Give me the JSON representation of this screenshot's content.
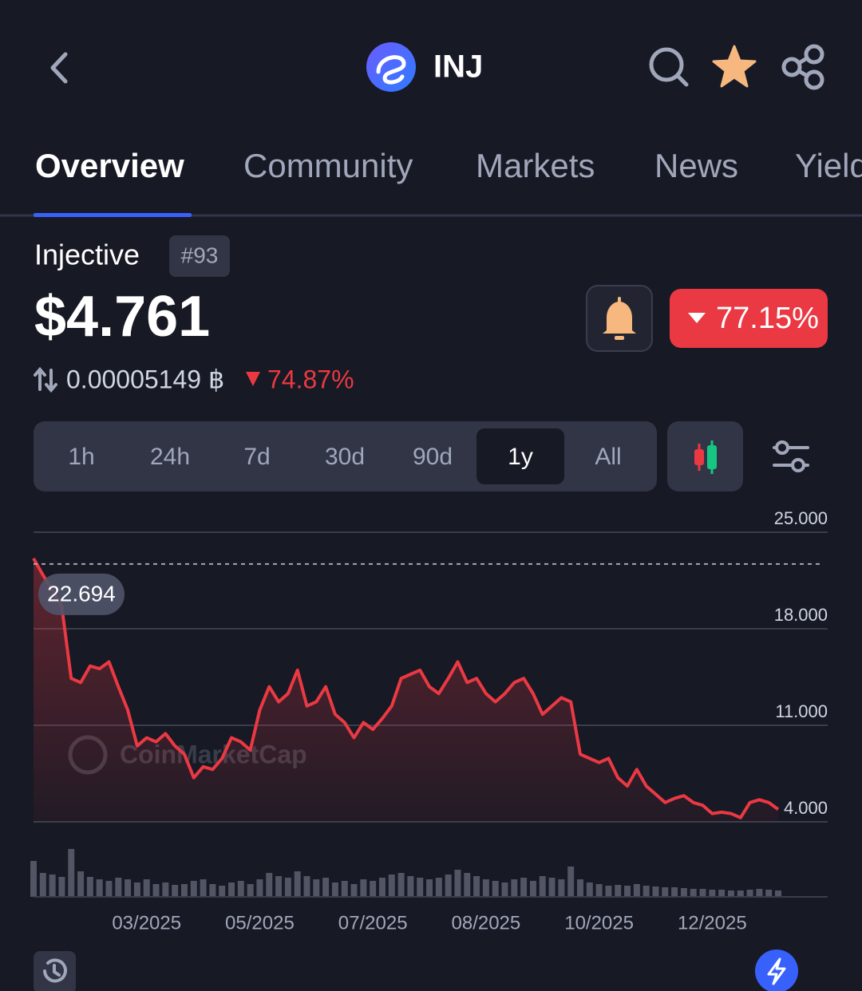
{
  "header": {
    "title": "INJ"
  },
  "tabs": {
    "items": [
      "Overview",
      "Community",
      "Markets",
      "News",
      "Yield"
    ],
    "active": 0
  },
  "coin": {
    "name": "Injective",
    "rank": "#93",
    "price": "$4.761",
    "change": "77.15%",
    "btc_price": "0.00005149 ฿",
    "btc_change": "74.87%"
  },
  "timeframes": {
    "items": [
      "1h",
      "24h",
      "7d",
      "30d",
      "90d",
      "1y",
      "All"
    ],
    "active": 5
  },
  "chart_data": {
    "type": "line",
    "watermark": "CoinMarketCap",
    "categories": [
      null,
      null,
      null,
      null,
      null,
      null,
      null,
      null,
      null,
      null,
      null,
      null,
      "03/2025",
      null,
      null,
      null,
      null,
      null,
      null,
      null,
      null,
      null,
      null,
      null,
      "05/2025",
      null,
      null,
      null,
      null,
      null,
      null,
      null,
      null,
      null,
      null,
      null,
      "07/2025",
      null,
      null,
      null,
      null,
      null,
      null,
      null,
      null,
      null,
      null,
      null,
      "08/2025",
      null,
      null,
      null,
      null,
      null,
      null,
      null,
      null,
      null,
      null,
      null,
      "10/2025",
      null,
      null,
      null,
      null,
      null,
      null,
      null,
      null,
      null,
      null,
      null,
      "12/2025",
      null,
      null,
      null,
      null,
      null,
      null,
      null
    ],
    "values": [
      23.1,
      21.9,
      20.8,
      19.6,
      14.4,
      14.1,
      15.3,
      15.1,
      15.6,
      13.8,
      12.1,
      9.5,
      10.1,
      9.8,
      10.4,
      9.5,
      8.9,
      7.2,
      8.0,
      7.8,
      8.6,
      10.1,
      9.8,
      9.2,
      12.1,
      13.8,
      12.7,
      13.3,
      15.0,
      12.4,
      12.7,
      13.8,
      11.8,
      11.2,
      10.1,
      11.2,
      10.7,
      11.5,
      12.4,
      14.4,
      14.7,
      15.0,
      13.8,
      13.3,
      14.4,
      15.6,
      14.1,
      14.4,
      13.3,
      12.7,
      13.3,
      14.1,
      14.4,
      13.3,
      11.8,
      12.4,
      13.0,
      12.7,
      8.9,
      8.6,
      8.3,
      8.6,
      7.2,
      6.6,
      7.8,
      6.6,
      6.0,
      5.4,
      5.7,
      5.9,
      5.4,
      5.2,
      4.6,
      4.7,
      4.6,
      4.3,
      5.4,
      5.6,
      5.4,
      4.9
    ],
    "color": "#ea3943",
    "volume": [
      45,
      30,
      28,
      25,
      60,
      32,
      25,
      22,
      20,
      24,
      22,
      18,
      22,
      16,
      18,
      15,
      16,
      20,
      22,
      16,
      14,
      18,
      20,
      16,
      22,
      30,
      26,
      24,
      32,
      26,
      22,
      24,
      18,
      20,
      16,
      22,
      20,
      24,
      28,
      30,
      26,
      24,
      22,
      24,
      28,
      34,
      30,
      26,
      22,
      20,
      18,
      22,
      24,
      20,
      26,
      24,
      22,
      38,
      22,
      18,
      16,
      14,
      15,
      14,
      16,
      14,
      13,
      12,
      12,
      11,
      10,
      10,
      9,
      9,
      8,
      8,
      9,
      10,
      9,
      8
    ],
    "ylim": [
      4,
      25
    ],
    "yticks": [
      {
        "value": 4,
        "label": "4.000"
      },
      {
        "value": 11,
        "label": "11.000"
      },
      {
        "value": 18,
        "label": "18.000"
      },
      {
        "value": 25,
        "label": "25.000"
      }
    ],
    "reference_value": 22.694,
    "grid": true
  }
}
